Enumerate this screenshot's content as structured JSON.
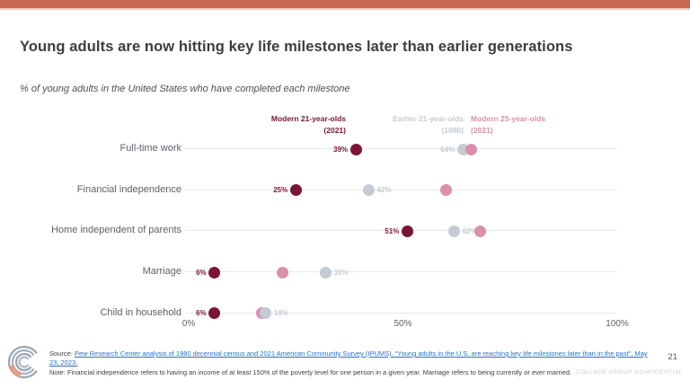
{
  "slide": {
    "title": "Young adults are now hitting key life milestones later than earlier generations",
    "subtitle": "% of young adults in the United States who have completed each milestone",
    "page_number": "21",
    "confidential": "COLLAGE GROUP CONFIDENTIAL",
    "source_prefix": "Source: ",
    "source_link": "Pew Research Center analysis of 1980 decennial census and 2021 American Community Survey (IPUMS). “Young adults in the U.S. are reaching key life milestones later than in the past”, May 23, 2023.",
    "note": "Note: Financial independence refers to having an income of at least 150% of the poverty level for one person in a given year. Marriage refers to being currently or ever married."
  },
  "theme": {
    "top_bar_color": "#c9684e",
    "maroon": "#7c1437",
    "gray": "#c3cbd4",
    "pink": "#dc8fa9",
    "link_color": "#2e6fc2"
  },
  "chart_data": {
    "type": "scatter",
    "variant": "horizontal-dot-plot",
    "title": "% of young adults in the United States who have completed each milestone",
    "x_axis": {
      "range": [
        0,
        100
      ],
      "ticks": [
        {
          "value": 0,
          "label": "0%"
        },
        {
          "value": 50,
          "label": "50%"
        },
        {
          "value": 100,
          "label": "100%"
        }
      ]
    },
    "series": [
      {
        "name": "Modern 21-year-olds",
        "year": "(2021)",
        "color": "#7c1437"
      },
      {
        "name": "Earlier 21-year-olds",
        "year": "(1980)",
        "color": "#c3cbd4"
      },
      {
        "name": "Modern 25-year-olds",
        "year": "(2021)",
        "color": "#dc8fa9"
      }
    ],
    "rows": [
      {
        "label": "Full-time work",
        "dots": [
          {
            "series": 0,
            "value": 39,
            "label": "39%",
            "label_side": "left"
          },
          {
            "series": 1,
            "value": 64,
            "label": "64%",
            "label_side": "left"
          },
          {
            "series": 2,
            "value": 66,
            "label": "",
            "label_side": "right"
          }
        ]
      },
      {
        "label": "Financial independence",
        "dots": [
          {
            "series": 0,
            "value": 25,
            "label": "25%",
            "label_side": "left"
          },
          {
            "series": 1,
            "value": 42,
            "label": "42%",
            "label_side": "right"
          },
          {
            "series": 2,
            "value": 60,
            "label": "",
            "label_side": "right"
          }
        ]
      },
      {
        "label": "Home independent of parents",
        "dots": [
          {
            "series": 0,
            "value": 51,
            "label": "51%",
            "label_side": "left"
          },
          {
            "series": 1,
            "value": 62,
            "label": "62%",
            "label_side": "right"
          },
          {
            "series": 2,
            "value": 68,
            "label": "",
            "label_side": "right"
          }
        ]
      },
      {
        "label": "Marriage",
        "dots": [
          {
            "series": 0,
            "value": 6,
            "label": "6%",
            "label_side": "left"
          },
          {
            "series": 2,
            "value": 22,
            "label": "",
            "label_side": "right"
          },
          {
            "series": 1,
            "value": 32,
            "label": "32%",
            "label_side": "right"
          }
        ]
      },
      {
        "label": "Child in household",
        "dots": [
          {
            "series": 0,
            "value": 6,
            "label": "6%",
            "label_side": "left"
          },
          {
            "series": 2,
            "value": 17,
            "label": "",
            "label_side": "right"
          },
          {
            "series": 1,
            "value": 18,
            "label": "18%",
            "label_side": "right"
          }
        ]
      }
    ]
  }
}
